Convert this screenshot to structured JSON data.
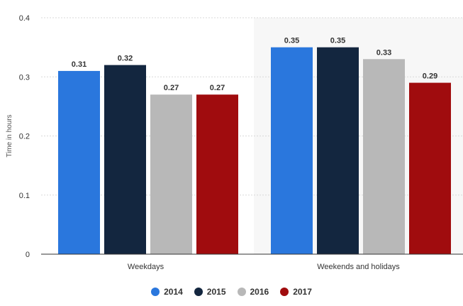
{
  "chart_data": {
    "type": "bar",
    "categories": [
      "Weekdays",
      "Weekends and holidays"
    ],
    "series": [
      {
        "name": "2014",
        "color": "#2a77dd",
        "values": [
          0.31,
          0.35
        ]
      },
      {
        "name": "2015",
        "color": "#13263f",
        "values": [
          0.32,
          0.35
        ]
      },
      {
        "name": "2016",
        "color": "#b8b8b8",
        "values": [
          0.27,
          0.33
        ]
      },
      {
        "name": "2017",
        "color": "#a00c0e",
        "values": [
          0.27,
          0.29
        ]
      }
    ],
    "ylabel": "Time in hours",
    "ylim": [
      0,
      0.4
    ],
    "yticks": [
      0,
      0.1,
      0.2,
      0.3,
      0.4
    ],
    "ytick_labels": [
      "0",
      "0.1",
      "0.2",
      "0.3",
      "0.4"
    ],
    "grid": true,
    "legend_position": "bottom-center",
    "highlighted_category": "Weekends and holidays",
    "highlight_color": "#f7f7f7"
  }
}
